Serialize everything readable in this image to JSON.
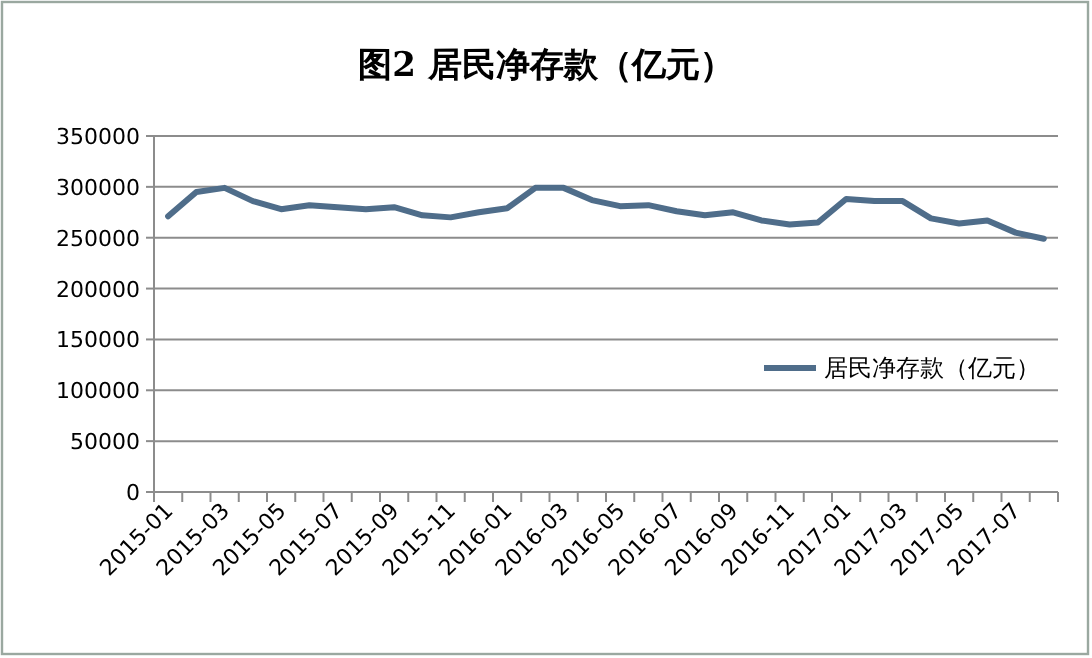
{
  "chart_data": {
    "type": "line",
    "title": "图2 居民净存款（亿元）",
    "categories": [
      "2015-01",
      null,
      "2015-03",
      null,
      "2015-05",
      null,
      "2015-07",
      null,
      "2015-09",
      null,
      "2015-11",
      null,
      "2016-01",
      null,
      "2016-03",
      null,
      "2016-05",
      null,
      "2016-07",
      null,
      "2016-09",
      null,
      "2016-11",
      null,
      "2017-01",
      null,
      "2017-03",
      null,
      "2017-05",
      null,
      "2017-07",
      null
    ],
    "series": [
      {
        "name": "居民净存款（亿元）",
        "color": "#4f6d8a",
        "values": [
          271000,
          295000,
          299000,
          286000,
          278000,
          282000,
          280000,
          278000,
          280000,
          272000,
          270000,
          275000,
          279000,
          299000,
          299000,
          287000,
          281000,
          282000,
          276000,
          272000,
          275000,
          267000,
          263000,
          265000,
          288000,
          286000,
          286000,
          269000,
          264000,
          267000,
          255000,
          249000
        ]
      }
    ],
    "ylim": [
      0,
      350000
    ],
    "yticks": [
      0,
      50000,
      100000,
      150000,
      200000,
      250000,
      300000,
      350000
    ],
    "grid": "y",
    "legend": "right",
    "marker": "none",
    "line_style": "solid"
  }
}
